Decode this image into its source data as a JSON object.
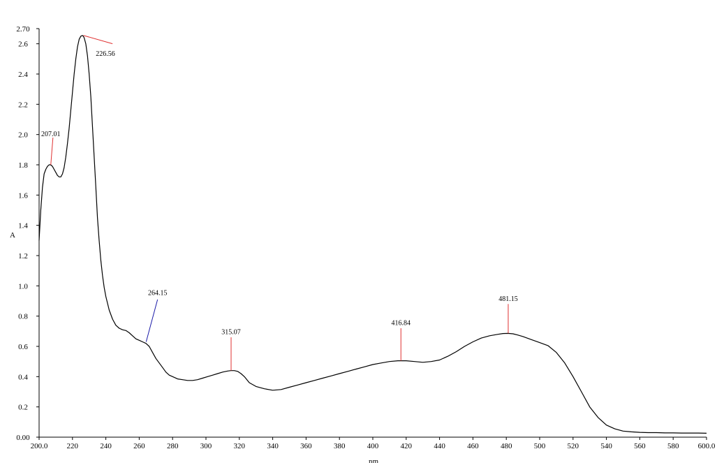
{
  "chart_data": {
    "type": "line",
    "xlabel": "nm",
    "ylabel": "A",
    "xlim": [
      200,
      600
    ],
    "ylim": [
      0,
      2.7
    ],
    "x_ticks": [
      "200.0",
      "220",
      "240",
      "260",
      "280",
      "300",
      "320",
      "340",
      "360",
      "380",
      "400",
      "420",
      "440",
      "460",
      "480",
      "500",
      "520",
      "540",
      "560",
      "580",
      "600.0"
    ],
    "x_tick_values": [
      200,
      220,
      240,
      260,
      280,
      300,
      320,
      340,
      360,
      380,
      400,
      420,
      440,
      460,
      480,
      500,
      520,
      540,
      560,
      580,
      600
    ],
    "y_ticks": [
      "0.00",
      "0.2",
      "0.4",
      "0.6",
      "0.8",
      "1.0",
      "1.2",
      "1.4",
      "1.6",
      "1.8",
      "2.0",
      "2.2",
      "2.4",
      "2.6",
      "2.70"
    ],
    "y_tick_values": [
      0,
      0.2,
      0.4,
      0.6,
      0.8,
      1.0,
      1.2,
      1.4,
      1.6,
      1.8,
      2.0,
      2.2,
      2.4,
      2.6,
      2.7
    ],
    "grid": false,
    "series": [
      {
        "color": "#000000",
        "x": [
          200,
          201,
          202,
          203,
          204,
          205,
          206,
          207,
          208,
          209,
          210,
          211,
          212,
          213,
          214,
          215,
          216,
          217,
          218,
          219,
          220,
          221,
          222,
          223,
          224,
          225,
          226,
          226.5,
          227,
          228,
          229,
          230,
          231,
          232,
          233,
          234,
          235,
          236,
          237,
          238,
          239,
          240,
          242,
          244,
          246,
          248,
          250,
          252,
          254,
          256,
          258,
          260,
          262,
          264,
          266,
          268,
          270,
          272,
          274,
          276,
          278,
          280,
          283,
          286,
          289,
          292,
          295,
          298,
          301,
          304,
          307,
          310,
          313,
          315,
          317,
          319,
          321,
          323,
          326,
          330,
          335,
          340,
          345,
          350,
          355,
          360,
          365,
          370,
          375,
          380,
          385,
          390,
          395,
          400,
          405,
          410,
          415,
          417,
          420,
          425,
          430,
          435,
          440,
          445,
          450,
          455,
          460,
          465,
          470,
          475,
          478,
          481,
          484,
          487,
          490,
          495,
          500,
          505,
          510,
          515,
          520,
          525,
          530,
          535,
          540,
          545,
          550,
          555,
          560,
          565,
          570,
          575,
          580,
          585,
          590,
          595,
          600
        ],
        "y": [
          1.3,
          1.5,
          1.65,
          1.74,
          1.77,
          1.79,
          1.8,
          1.8,
          1.79,
          1.77,
          1.75,
          1.73,
          1.72,
          1.72,
          1.74,
          1.78,
          1.85,
          1.94,
          2.04,
          2.16,
          2.28,
          2.4,
          2.5,
          2.58,
          2.63,
          2.65,
          2.655,
          2.65,
          2.64,
          2.6,
          2.52,
          2.4,
          2.25,
          2.05,
          1.85,
          1.65,
          1.45,
          1.3,
          1.17,
          1.07,
          0.99,
          0.93,
          0.84,
          0.78,
          0.74,
          0.72,
          0.71,
          0.705,
          0.69,
          0.67,
          0.65,
          0.64,
          0.63,
          0.62,
          0.6,
          0.56,
          0.52,
          0.49,
          0.46,
          0.43,
          0.41,
          0.4,
          0.385,
          0.38,
          0.375,
          0.375,
          0.38,
          0.39,
          0.4,
          0.41,
          0.42,
          0.43,
          0.437,
          0.44,
          0.44,
          0.435,
          0.42,
          0.4,
          0.36,
          0.335,
          0.32,
          0.31,
          0.315,
          0.33,
          0.345,
          0.36,
          0.375,
          0.39,
          0.405,
          0.42,
          0.435,
          0.45,
          0.465,
          0.48,
          0.49,
          0.5,
          0.505,
          0.505,
          0.505,
          0.5,
          0.495,
          0.5,
          0.51,
          0.535,
          0.565,
          0.6,
          0.63,
          0.655,
          0.67,
          0.68,
          0.685,
          0.686,
          0.683,
          0.675,
          0.665,
          0.645,
          0.625,
          0.605,
          0.56,
          0.49,
          0.4,
          0.3,
          0.2,
          0.13,
          0.08,
          0.055,
          0.04,
          0.035,
          0.032,
          0.03,
          0.03,
          0.028,
          0.028,
          0.027,
          0.027,
          0.027,
          0.026
        ]
      }
    ],
    "annotations": [
      {
        "label": "207.01",
        "x": 207.01,
        "y": 1.8,
        "color": "#e03030",
        "ly": 1.98,
        "lx": 208.3,
        "tx": 207.01,
        "ty": 1.99,
        "anchor": "middle"
      },
      {
        "label": "226.56",
        "x": 226.56,
        "y": 2.655,
        "color": "#e03030",
        "ly": 2.6,
        "lx": 244,
        "tx": 234,
        "ty": 2.52,
        "anchor": "start"
      },
      {
        "label": "264.15",
        "x": 264.15,
        "y": 0.63,
        "color": "#1a1aa8",
        "ly": 0.91,
        "lx": 271,
        "tx": 271,
        "ty": 0.94,
        "anchor": "middle"
      },
      {
        "label": "315.07",
        "x": 315.07,
        "y": 0.44,
        "color": "#e03030",
        "ly": 0.66,
        "lx": 315.07,
        "tx": 315.07,
        "ty": 0.68,
        "anchor": "middle"
      },
      {
        "label": "416.84",
        "x": 416.84,
        "y": 0.505,
        "color": "#e03030",
        "ly": 0.72,
        "lx": 416.84,
        "tx": 416.84,
        "ty": 0.74,
        "anchor": "middle"
      },
      {
        "label": "481.15",
        "x": 481.15,
        "y": 0.686,
        "color": "#e03030",
        "ly": 0.88,
        "lx": 481.15,
        "tx": 481.15,
        "ty": 0.9,
        "anchor": "middle"
      }
    ]
  }
}
